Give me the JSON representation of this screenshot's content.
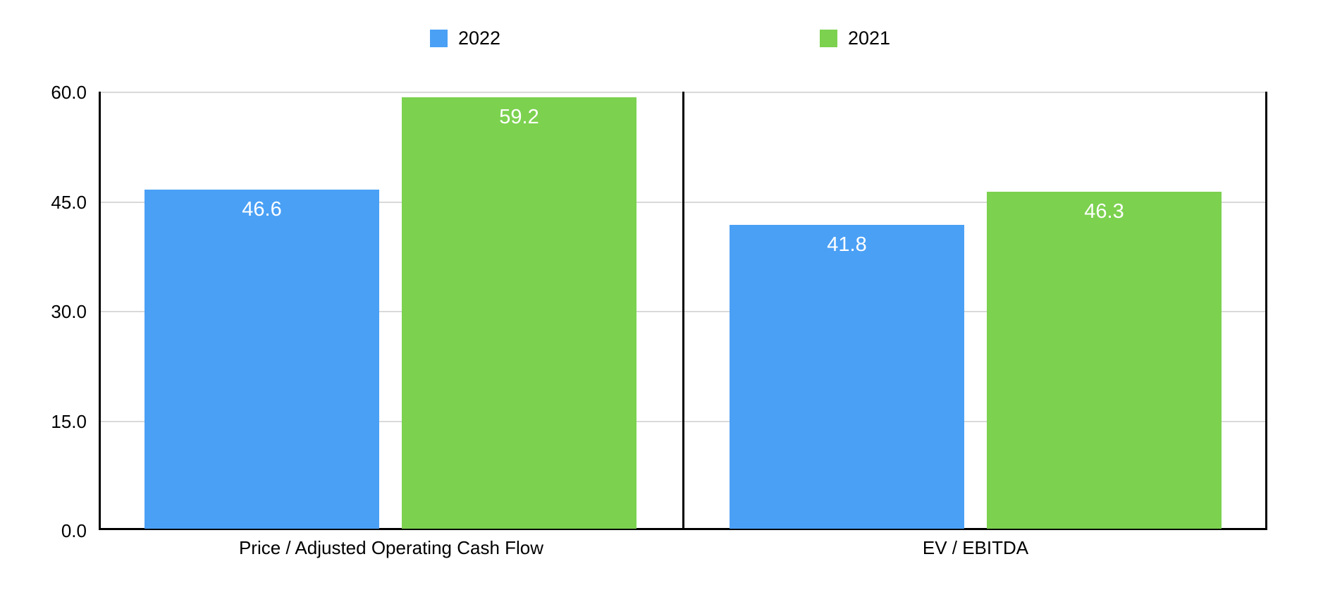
{
  "chart_data": {
    "type": "bar",
    "categories": [
      "Price / Adjusted Operating Cash Flow",
      "EV / EBITDA"
    ],
    "series": [
      {
        "name": "2022",
        "color": "#4AA0F5",
        "values": [
          46.6,
          41.8
        ],
        "value_labels": [
          "46.6",
          "41.8"
        ]
      },
      {
        "name": "2021",
        "color": "#7CD14F",
        "values": [
          59.2,
          46.3
        ],
        "value_labels": [
          "59.2",
          "46.3"
        ]
      }
    ],
    "title": "",
    "xlabel": "",
    "ylabel": "",
    "ylim": [
      0,
      60
    ],
    "yticks": [
      0,
      15,
      30,
      45,
      60
    ],
    "ytick_labels": [
      "0.0",
      "15.0",
      "30.0",
      "45.0",
      "60.0"
    ],
    "grid": true,
    "legend_position": "top",
    "value_label_position": "inside-top"
  },
  "legend": {
    "items": [
      {
        "label": "2022",
        "color": "#4AA0F5"
      },
      {
        "label": "2021",
        "color": "#7CD14F"
      }
    ]
  },
  "colors": {
    "background": "#FFFFFF",
    "series_2022": "#4AA0F5",
    "series_2021": "#7CD14F",
    "gridline": "#D9D9D9",
    "axis": "#000000",
    "value_label_text": "#FFFFFF",
    "tick_label_text": "#000000"
  }
}
